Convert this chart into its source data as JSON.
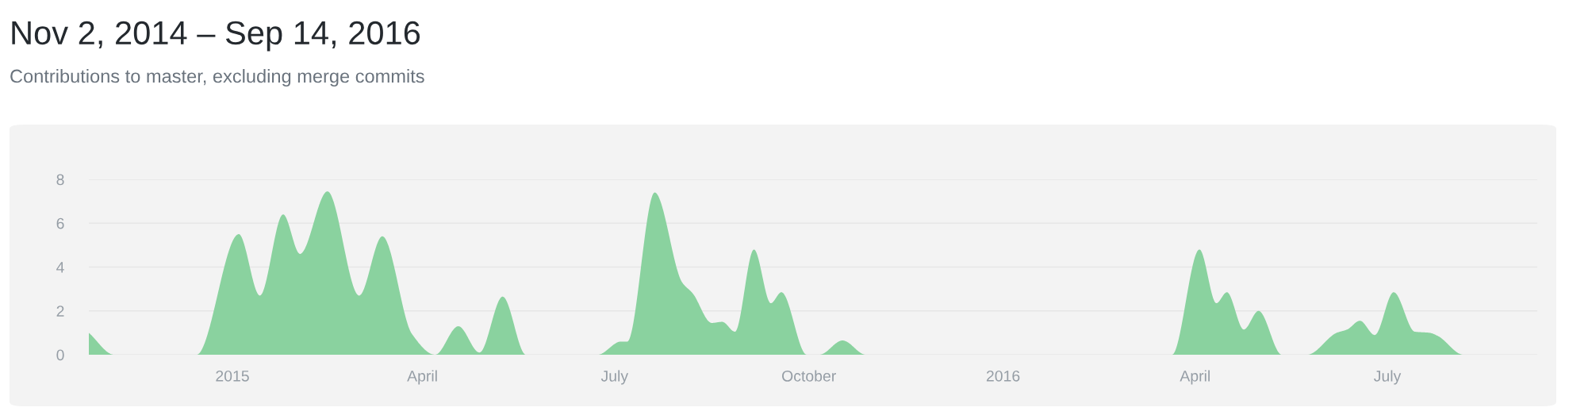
{
  "chart_data": {
    "type": "area",
    "title": "Nov 2, 2014 – Sep 14, 2016",
    "subtitle": "Contributions to master, excluding merge commits",
    "x": [
      "2014-10-25",
      "2014-11-06",
      "2014-12-15",
      "2015-01-04",
      "2015-01-14",
      "2015-01-25",
      "2015-02-02",
      "2015-02-15",
      "2015-03-02",
      "2015-03-13",
      "2015-03-27",
      "2015-04-07",
      "2015-04-18",
      "2015-04-28",
      "2015-05-09",
      "2015-05-20",
      "2015-06-23",
      "2015-07-04",
      "2015-07-07",
      "2015-07-20",
      "2015-08-02",
      "2015-08-07",
      "2015-08-16",
      "2015-08-21",
      "2015-08-27",
      "2015-09-05",
      "2015-09-13",
      "2015-09-18",
      "2015-09-30",
      "2015-10-06",
      "2015-10-17",
      "2015-10-28",
      "2016-03-21",
      "2016-04-03",
      "2016-04-11",
      "2016-04-16",
      "2016-04-24",
      "2016-05-01",
      "2016-05-12",
      "2016-05-24",
      "2016-06-07",
      "2016-06-12",
      "2016-06-18",
      "2016-06-25",
      "2016-07-04",
      "2016-07-14",
      "2016-07-21",
      "2016-07-25",
      "2016-08-06",
      "2016-09-10"
    ],
    "series": [
      {
        "color": "#8ad29f",
        "values": [
          1.0,
          0,
          0,
          5.5,
          2.7,
          6.4,
          4.6,
          7.45,
          2.7,
          5.4,
          0.95,
          0,
          1.3,
          0.1,
          2.65,
          0,
          0,
          0.6,
          0.6,
          7.4,
          3.3,
          2.8,
          1.45,
          1.5,
          1.05,
          4.8,
          2.35,
          2.85,
          0,
          0,
          0.65,
          0,
          0,
          4.8,
          2.35,
          2.85,
          1.15,
          2.0,
          0,
          0,
          1.0,
          1.15,
          1.55,
          0.9,
          2.85,
          1.05,
          1.0,
          0.85,
          0,
          0
        ]
      }
    ],
    "xlim": [
      "2014-10-25",
      "2016-09-10"
    ],
    "xticks": [
      {
        "value": "2015-01-01",
        "label": "2015"
      },
      {
        "value": "2015-04-01",
        "label": "April"
      },
      {
        "value": "2015-07-01",
        "label": "July"
      },
      {
        "value": "2015-10-01",
        "label": "October"
      },
      {
        "value": "2016-01-01",
        "label": "2016"
      },
      {
        "value": "2016-04-01",
        "label": "April"
      },
      {
        "value": "2016-07-01",
        "label": "July"
      }
    ],
    "ylim": [
      0,
      8
    ],
    "yticks": [
      0,
      2,
      4,
      6,
      8
    ],
    "grid": "y"
  }
}
